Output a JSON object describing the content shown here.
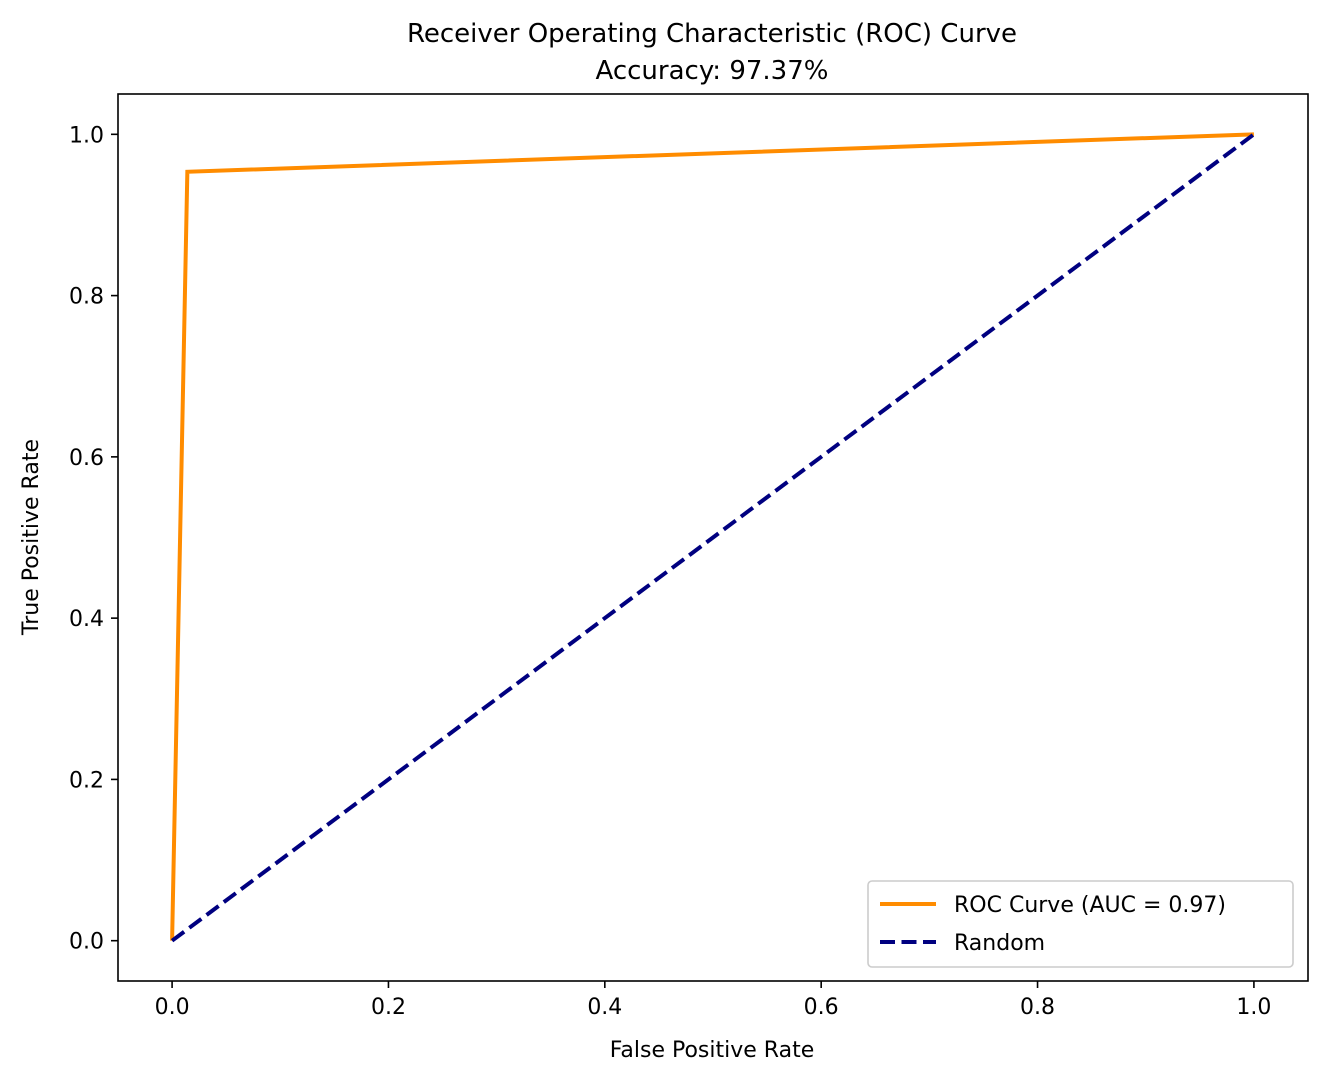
{
  "chart_data": {
    "type": "line",
    "title": "Receiver Operating Characteristic (ROC) Curve",
    "subtitle": "Accuracy: 97.37%",
    "xlabel": "False Positive Rate",
    "ylabel": "True Positive Rate",
    "xlim": [
      -0.05,
      1.05
    ],
    "ylim": [
      -0.05,
      1.05
    ],
    "xticks": [
      0.0,
      0.2,
      0.4,
      0.6,
      0.8,
      1.0
    ],
    "xtick_labels": [
      "0.0",
      "0.2",
      "0.4",
      "0.6",
      "0.8",
      "1.0"
    ],
    "yticks": [
      0.0,
      0.2,
      0.4,
      0.6,
      0.8,
      1.0
    ],
    "ytick_labels": [
      "0.0",
      "0.2",
      "0.4",
      "0.6",
      "0.8",
      "1.0"
    ],
    "grid": false,
    "legend_position": "lower-right",
    "series": [
      {
        "name": "ROC Curve (AUC = 0.97)",
        "color": "#ff8c00",
        "style": "solid",
        "x": [
          0.0,
          0.0141,
          1.0
        ],
        "y": [
          0.0,
          0.9535,
          1.0
        ]
      },
      {
        "name": "Random",
        "color": "#000080",
        "style": "dashed",
        "x": [
          0.0,
          1.0
        ],
        "y": [
          0.0,
          1.0
        ]
      }
    ]
  }
}
